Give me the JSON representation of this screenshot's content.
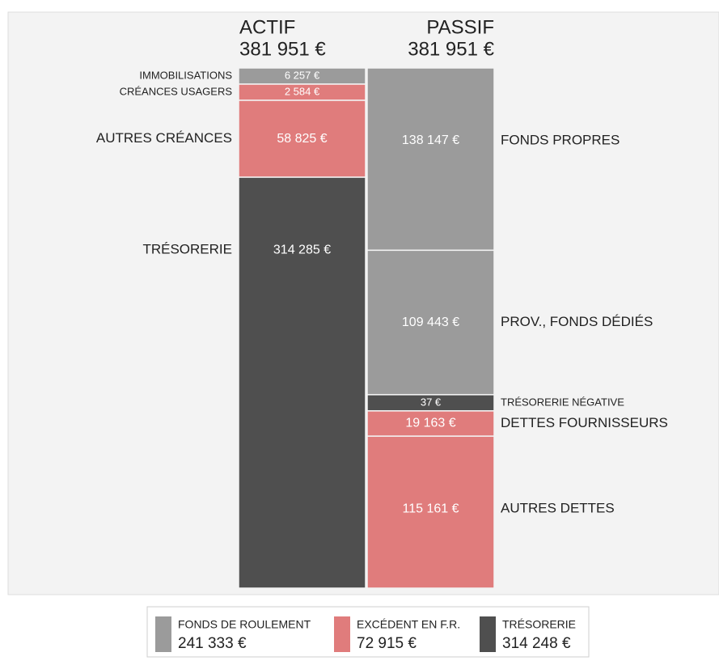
{
  "chart_data": {
    "type": "balance",
    "columns": [
      {
        "name": "ACTIF",
        "total_label": "381 951 €",
        "categories": [
          "IMMOBILISATIONS",
          "CRÉANCES USAGERS",
          "AUTRES CRÉANCES",
          "TRÉSORERIE"
        ],
        "values": [
          6257,
          2584,
          58825,
          314285
        ],
        "value_labels": [
          "6 257 €",
          "2 584 €",
          "58 825 €",
          "314 285 €"
        ],
        "colors": [
          "#9b9b9b",
          "#e07c7c",
          "#e07c7c",
          "#4f4f4f"
        ]
      },
      {
        "name": "PASSIF",
        "total_label": "381 951 €",
        "categories": [
          "FONDS PROPRES",
          "PROV., FONDS DÉDIÉS",
          "TRÉSORERIE NÉGATIVE",
          "DETTES FOURNISSEURS",
          "AUTRES DETTES"
        ],
        "values": [
          138147,
          109443,
          37,
          19163,
          115161
        ],
        "value_labels": [
          "138 147 €",
          "109 443 €",
          "37 €",
          "19 163 €",
          "115 161 €"
        ],
        "colors": [
          "#9b9b9b",
          "#9b9b9b",
          "#4f4f4f",
          "#e07c7c",
          "#e07c7c"
        ]
      }
    ],
    "legend": {
      "names": [
        "FONDS DE ROULEMENT",
        "EXCÉDENT EN F.R.",
        "TRÉSORERIE"
      ],
      "values": [
        241333,
        72915,
        314248
      ],
      "value_labels": [
        "241 333 €",
        "72 915 €",
        "314 248 €"
      ],
      "colors": [
        "#9b9b9b",
        "#e07c7c",
        "#4f4f4f"
      ]
    }
  }
}
